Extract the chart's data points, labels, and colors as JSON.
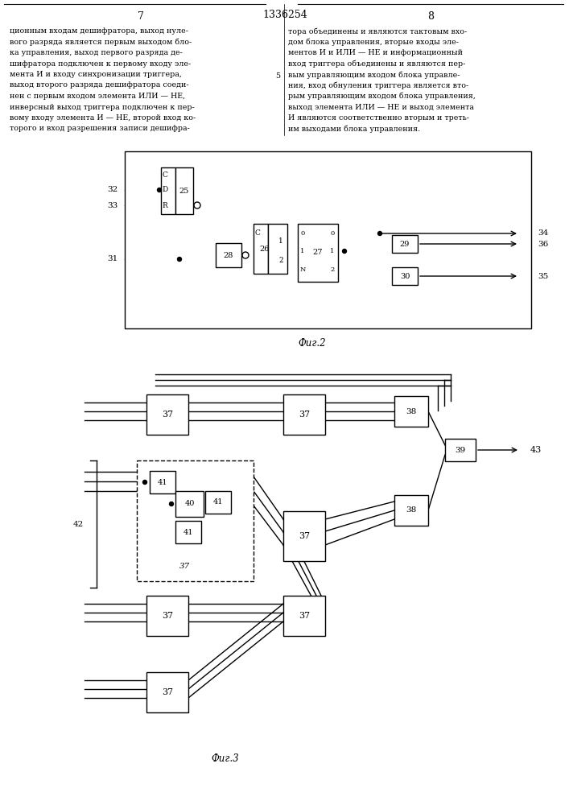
{
  "title": "1336254",
  "page_numbers": [
    "7",
    "8"
  ],
  "fig2_label": "Фиг.2",
  "fig3_label": "Фиг.3",
  "text_left": "ционным входам дешифратора, выход нуле-\nвого разряда является первым выходом бло-\nка управления, выход первого разряда де-\nшифратора подключен к первому входу эле-\nмента И и входу синхронизации триггера,\nвыход второго разряда дешифратора соеди-\nнен с первым входом элемента ИЛИ — НЕ,\nинверсный выход триггера подключен к пер-\nвому входу элемента И — НЕ, второй вход ко-\nторого и вход разрешения записи дешифра-",
  "text_right": "тора объединены и являются тактовым вхо-\nдом блока управления, вторые входы эле-\nментов И и ИЛИ — НЕ и информационный\nвход триггера объединены и являются пер-\nвым управляющим входом блока управле-\nния, вход обнуления триггера является вто-\nрым управляющим входом блока управления,\nвыход элемента ИЛИ — НЕ и выход элемента\nИ являются соответственно вторым и треть-\nим выходами блока управления.",
  "bg_color": "#ffffff",
  "line_color": "#000000",
  "text_color": "#000000"
}
